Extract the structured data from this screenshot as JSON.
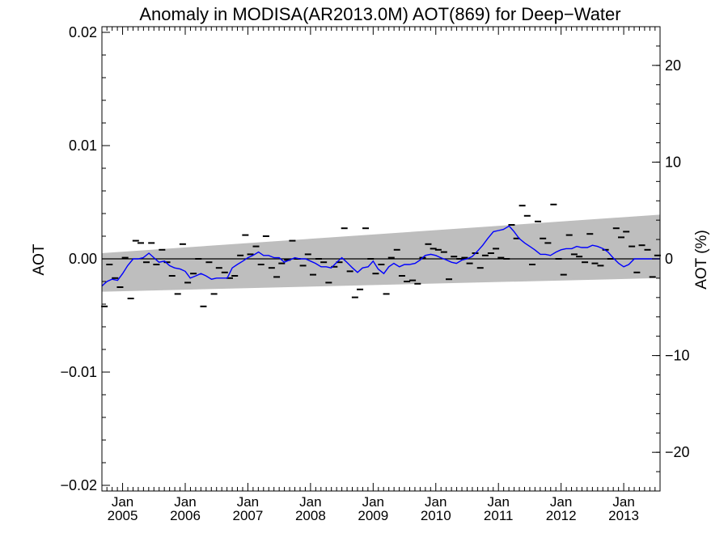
{
  "chart_data": {
    "type": "line",
    "title": "Anomaly in MODISA(AR2013.0M) AOT(869) for Deep−Water",
    "ylabel_left": "AOT",
    "ylabel_right": "AOT (%)",
    "xlabel": "",
    "xlim": [
      2004.67,
      2013.58
    ],
    "ylim_left": [
      -0.0205,
      0.0205
    ],
    "ylim_right": [
      -24,
      24
    ],
    "grid": false,
    "x_ticks": [
      {
        "x": 2005.0,
        "month": "Jan",
        "year": "2005"
      },
      {
        "x": 2006.0,
        "month": "Jan",
        "year": "2006"
      },
      {
        "x": 2007.0,
        "month": "Jan",
        "year": "2007"
      },
      {
        "x": 2008.0,
        "month": "Jan",
        "year": "2008"
      },
      {
        "x": 2009.0,
        "month": "Jan",
        "year": "2009"
      },
      {
        "x": 2010.0,
        "month": "Jan",
        "year": "2010"
      },
      {
        "x": 2011.0,
        "month": "Jan",
        "year": "2011"
      },
      {
        "x": 2012.0,
        "month": "Jan",
        "year": "2012"
      },
      {
        "x": 2013.0,
        "month": "Jan",
        "year": "2013"
      }
    ],
    "y_ticks_left": [
      {
        "value": 0.02,
        "label": "0.02"
      },
      {
        "value": 0.01,
        "label": "0.01"
      },
      {
        "value": 0.0,
        "label": "0.00"
      },
      {
        "value": -0.01,
        "label": "−0.01"
      },
      {
        "value": -0.02,
        "label": "−0.02"
      }
    ],
    "y_ticks_right": [
      {
        "value": 20,
        "label": "20"
      },
      {
        "value": 10,
        "label": "10"
      },
      {
        "value": 0,
        "label": "0"
      },
      {
        "value": -10,
        "label": "−10"
      },
      {
        "value": -20,
        "label": "−20"
      }
    ],
    "colors": {
      "band": "#bebebe",
      "line": "#0000ff",
      "points": "#000000",
      "zero_line": "#000000"
    },
    "band": {
      "x": [
        2004.67,
        2013.58
      ],
      "upper": [
        0.0005,
        0.0039
      ],
      "lower": [
        -0.0029,
        -0.0017
      ]
    },
    "monthly_anomalies": {
      "x": [
        2004.71,
        2004.79,
        2004.88,
        2004.96,
        2005.04,
        2005.13,
        2005.21,
        2005.29,
        2005.38,
        2005.46,
        2005.54,
        2005.63,
        2005.71,
        2005.79,
        2005.88,
        2005.96,
        2006.04,
        2006.13,
        2006.21,
        2006.29,
        2006.38,
        2006.46,
        2006.54,
        2006.63,
        2006.71,
        2006.79,
        2006.88,
        2006.96,
        2007.04,
        2007.13,
        2007.21,
        2007.29,
        2007.38,
        2007.46,
        2007.54,
        2007.63,
        2007.71,
        2007.79,
        2007.88,
        2007.96,
        2008.04,
        2008.13,
        2008.21,
        2008.29,
        2008.38,
        2008.46,
        2008.54,
        2008.63,
        2008.71,
        2008.79,
        2008.88,
        2008.96,
        2009.04,
        2009.13,
        2009.21,
        2009.29,
        2009.38,
        2009.46,
        2009.54,
        2009.63,
        2009.71,
        2009.79,
        2009.88,
        2009.96,
        2010.04,
        2010.13,
        2010.21,
        2010.29,
        2010.38,
        2010.46,
        2010.54,
        2010.63,
        2010.71,
        2010.79,
        2010.88,
        2010.96,
        2011.04,
        2011.13,
        2011.21,
        2011.29,
        2011.38,
        2011.46,
        2011.54,
        2011.63,
        2011.71,
        2011.79,
        2011.88,
        2011.96,
        2012.04,
        2012.13,
        2012.21,
        2012.29,
        2012.38,
        2012.46,
        2012.54,
        2012.63,
        2012.71,
        2012.79,
        2012.88,
        2012.96,
        2013.04,
        2013.13,
        2013.21,
        2013.29,
        2013.38,
        2013.46,
        2013.54
      ],
      "values": [
        -0.0042,
        -0.0005,
        -0.0017,
        -0.0025,
        0.0001,
        -0.0035,
        0.0016,
        0.0014,
        -0.0003,
        0.0014,
        -0.0005,
        0.0008,
        -0.0003,
        -0.0015,
        -0.0031,
        0.0013,
        -0.0021,
        -0.0013,
        0.0,
        -0.0042,
        -0.0003,
        -0.0031,
        -0.0008,
        -0.0012,
        -0.0017,
        -0.0015,
        0.0003,
        0.0021,
        0.0004,
        0.0011,
        -0.0005,
        0.002,
        -0.0008,
        -0.0016,
        -0.0004,
        -0.0001,
        0.0016,
        0.0,
        -0.0006,
        0.0004,
        -0.0014,
        0.0,
        -0.0003,
        -0.0021,
        -0.0007,
        -0.0003,
        0.0027,
        -0.0011,
        -0.0034,
        -0.0027,
        0.0027,
        0.0,
        -0.0013,
        -0.0005,
        -0.0031,
        0.0001,
        0.0008,
        -0.0015,
        -0.002,
        -0.0019,
        -0.0022,
        0.0001,
        0.0013,
        0.0009,
        0.0008,
        0.0006,
        -0.0018,
        0.0002,
        0.0,
        0.0001,
        -0.0004,
        0.0005,
        -0.0008,
        0.0003,
        0.0005,
        0.0009,
        0.0001,
        0.0,
        0.003,
        0.0018,
        0.0047,
        0.0038,
        -0.0005,
        0.0033,
        0.0018,
        0.0014,
        0.0048,
        0.0,
        -0.0014,
        0.0021,
        0.0004,
        0.0002,
        -0.0003,
        0.0022,
        -0.0004,
        -0.0006,
        0.0008,
        0.0,
        0.0027,
        0.0019,
        0.0024,
        0.0011,
        -0.0012,
        0.0012,
        0.0008,
        -0.0016,
        0.0003
      ]
    },
    "running_mean": {
      "x": [
        2004.67,
        2004.75,
        2004.83,
        2004.92,
        2005.0,
        2005.08,
        2005.17,
        2005.25,
        2005.33,
        2005.42,
        2005.5,
        2005.58,
        2005.67,
        2005.75,
        2005.83,
        2005.92,
        2006.0,
        2006.08,
        2006.17,
        2006.25,
        2006.33,
        2006.42,
        2006.5,
        2006.58,
        2006.67,
        2006.75,
        2006.83,
        2006.92,
        2007.0,
        2007.08,
        2007.17,
        2007.25,
        2007.33,
        2007.42,
        2007.5,
        2007.58,
        2007.67,
        2007.75,
        2007.83,
        2007.92,
        2008.0,
        2008.08,
        2008.17,
        2008.25,
        2008.33,
        2008.42,
        2008.5,
        2008.58,
        2008.67,
        2008.75,
        2008.83,
        2008.92,
        2009.0,
        2009.08,
        2009.17,
        2009.25,
        2009.33,
        2009.42,
        2009.5,
        2009.58,
        2009.67,
        2009.75,
        2009.83,
        2009.92,
        2010.0,
        2010.08,
        2010.17,
        2010.25,
        2010.33,
        2010.42,
        2010.5,
        2010.58,
        2010.67,
        2010.75,
        2010.83,
        2010.92,
        2011.0,
        2011.08,
        2011.17,
        2011.25,
        2011.33,
        2011.42,
        2011.5,
        2011.58,
        2011.67,
        2011.75,
        2011.83,
        2011.92,
        2012.0,
        2012.08,
        2012.17,
        2012.25,
        2012.33,
        2012.42,
        2012.5,
        2012.58,
        2012.67,
        2012.75,
        2012.83,
        2012.92,
        2013.0,
        2013.08,
        2013.17,
        2013.25,
        2013.33,
        2013.42,
        2013.5,
        2013.58
      ],
      "values": [
        -0.0024,
        -0.002,
        -0.0018,
        -0.0019,
        -0.0013,
        -0.0006,
        0.0,
        0.0,
        0.0001,
        0.0005,
        0.0001,
        -0.0003,
        -0.0002,
        -0.0006,
        -0.0008,
        -0.0009,
        -0.0011,
        -0.0017,
        -0.0015,
        -0.0013,
        -0.0015,
        -0.0018,
        -0.0017,
        -0.0017,
        -0.0017,
        -0.0008,
        -0.0005,
        -0.0002,
        0.0001,
        0.0003,
        0.0006,
        0.0003,
        0.0003,
        0.0001,
        0.0001,
        -0.0003,
        -0.0001,
        0.0001,
        0.0,
        0.0,
        -0.0002,
        -0.0004,
        -0.0007,
        -0.0007,
        -0.0008,
        -0.0003,
        0.0001,
        -0.0003,
        -0.0008,
        -0.0012,
        -0.0008,
        -0.0007,
        -0.0002,
        -0.0009,
        -0.0013,
        -0.0007,
        -0.0004,
        -0.0007,
        -0.0005,
        -0.0005,
        -0.0004,
        -0.0001,
        0.0003,
        0.0004,
        0.0003,
        0.0001,
        -0.0001,
        -0.0003,
        -0.0004,
        -0.0001,
        0.0,
        0.0002,
        0.0007,
        0.0012,
        0.0018,
        0.0024,
        0.0025,
        0.0026,
        0.0029,
        0.0024,
        0.0018,
        0.0014,
        0.0011,
        0.0008,
        0.0004,
        0.0004,
        0.0003,
        0.0006,
        0.0008,
        0.0009,
        0.0009,
        0.0011,
        0.001,
        0.001,
        0.0012,
        0.0011,
        0.0009,
        0.0006,
        0.0001,
        -0.0004,
        -0.0007,
        -0.0005,
        0.0,
        0.0,
        0.0,
        0.0,
        0.0,
        0.0
      ]
    }
  }
}
